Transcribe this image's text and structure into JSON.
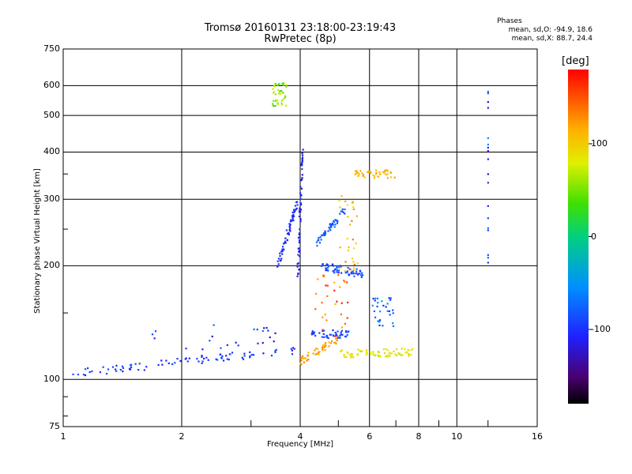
{
  "title_line1": "Tromsø 20160131 23:18:00-23:19:43",
  "title_line2": "RwPretec (8p)",
  "stats": {
    "heading": "Phases",
    "line_o": "mean, sd,O: -94.9, 18.6",
    "line_x": "mean, sd,X: 88.7, 24.4"
  },
  "colorbar": {
    "unit_label": "[deg]",
    "ticks": [
      "100",
      "0",
      "-100"
    ],
    "tick_values": [
      100,
      0,
      -100
    ],
    "range": [
      -180,
      180
    ]
  },
  "chart_data": {
    "type": "scatter",
    "xlabel": "Frequency [MHz]",
    "ylabel": "Stationary phase Virtual Height [km]",
    "x_scale": "log",
    "y_scale": "log",
    "xlim": [
      1,
      16
    ],
    "ylim": [
      75,
      750
    ],
    "x_ticks": [
      1,
      2,
      4,
      6,
      8,
      10,
      16
    ],
    "x_tick_labels": [
      "1",
      "2",
      "4",
      "6",
      "8",
      "10",
      "16"
    ],
    "y_ticks": [
      75,
      100,
      200,
      300,
      400,
      500,
      600,
      750
    ],
    "y_tick_labels": [
      "75",
      "100",
      "200",
      "300",
      "400",
      "500",
      "600",
      "750"
    ],
    "grid": true,
    "color_by": "phase_deg",
    "clusters": [
      {
        "kind": "trace",
        "from": [
          1.0,
          103
        ],
        "to": [
          3.95,
          120
        ],
        "phase": -100,
        "density": 14
      },
      {
        "kind": "trace",
        "from": [
          3.5,
          200
        ],
        "to": [
          3.95,
          300
        ],
        "phase": -105,
        "density": 10
      },
      {
        "kind": "trace",
        "from": [
          3.95,
          190
        ],
        "to": [
          4.05,
          400
        ],
        "phase": -110,
        "density": 10
      },
      {
        "kind": "trace",
        "from": [
          4.0,
          112
        ],
        "to": [
          5.0,
          128
        ],
        "phase": 120,
        "density": 8
      },
      {
        "kind": "trace",
        "from": [
          5.0,
          117
        ],
        "to": [
          7.8,
          118
        ],
        "phase": 85,
        "density": 12
      },
      {
        "kind": "trace",
        "from": [
          4.2,
          132
        ],
        "to": [
          5.3,
          132
        ],
        "phase": -95,
        "density": 8
      },
      {
        "kind": "trace",
        "from": [
          4.5,
          200
        ],
        "to": [
          5.8,
          190
        ],
        "phase": -90,
        "density": 10
      },
      {
        "kind": "trace",
        "from": [
          4.4,
          230
        ],
        "to": [
          5.2,
          280
        ],
        "phase": -85,
        "density": 8
      },
      {
        "kind": "trace",
        "from": [
          5.4,
          350
        ],
        "to": [
          7.0,
          350
        ],
        "phase": 110,
        "density": 8
      },
      {
        "kind": "cloud",
        "center": [
          3.55,
          570
        ],
        "spread": [
          0.15,
          40
        ],
        "phase": 55,
        "count": 40
      },
      {
        "kind": "cloud",
        "center": [
          5.3,
          250
        ],
        "spread": [
          0.3,
          60
        ],
        "phase": 110,
        "count": 30
      },
      {
        "kind": "cloud",
        "center": [
          6.5,
          150
        ],
        "spread": [
          0.4,
          15
        ],
        "phase": -80,
        "count": 30
      },
      {
        "kind": "cloud",
        "center": [
          4.8,
          160
        ],
        "spread": [
          0.5,
          30
        ],
        "phase": 140,
        "count": 30
      },
      {
        "kind": "cloud",
        "center": [
          2.5,
          125
        ],
        "spread": [
          1.0,
          15
        ],
        "phase": -100,
        "count": 25
      },
      {
        "kind": "column",
        "x": 12.0,
        "from": 180,
        "to": 600,
        "phase": -100,
        "count": 18
      }
    ]
  }
}
